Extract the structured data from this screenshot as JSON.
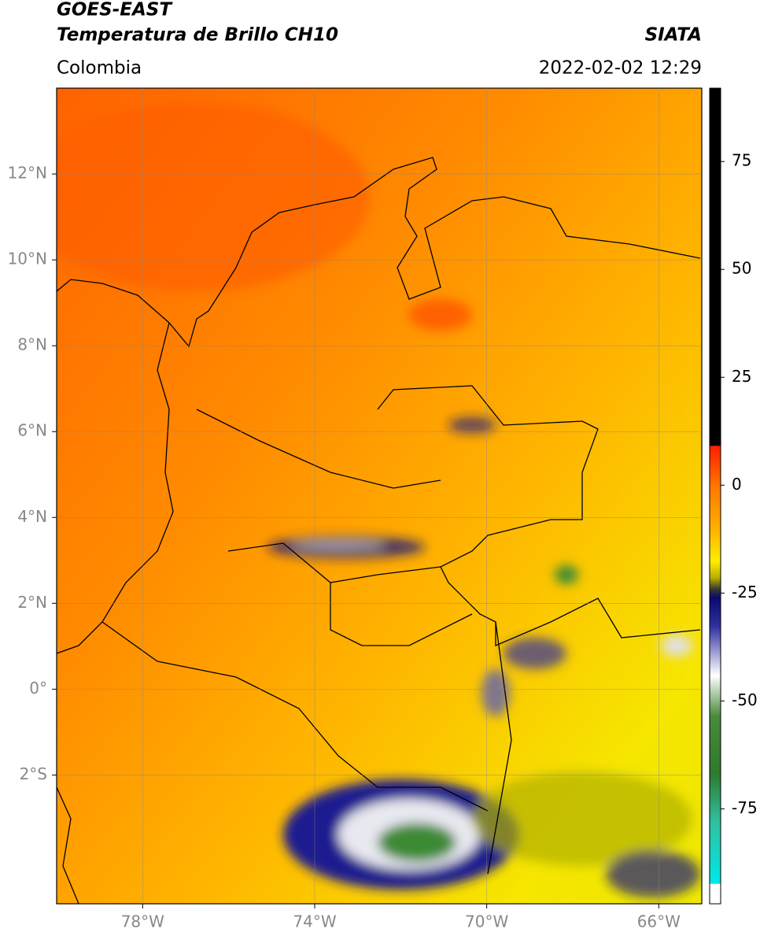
{
  "header": {
    "title": "GOES-EAST",
    "subtitle": "Temperatura de Brillo CH10",
    "region": "Colombia",
    "source": "SIATA",
    "datetime": "2022-02-02 12:29"
  },
  "map": {
    "xlim": [
      -80,
      -65
    ],
    "ylim": [
      -5,
      14
    ],
    "xticks": [
      {
        "value": -78,
        "label": "78°W"
      },
      {
        "value": -74,
        "label": "74°W"
      },
      {
        "value": -70,
        "label": "70°W"
      },
      {
        "value": -66,
        "label": "66°W"
      }
    ],
    "yticks": [
      {
        "value": 12,
        "label": "12°N"
      },
      {
        "value": 10,
        "label": "10°N"
      },
      {
        "value": 8,
        "label": "8°N"
      },
      {
        "value": 6,
        "label": "6°N"
      },
      {
        "value": 4,
        "label": "4°N"
      },
      {
        "value": 2,
        "label": "2°N"
      },
      {
        "value": 0,
        "label": "0°"
      },
      {
        "value": -2,
        "label": "2°S"
      }
    ],
    "grid": true
  },
  "colorbar": {
    "clim": [
      -97,
      92
    ],
    "ticks": [
      75,
      50,
      25,
      0,
      -25,
      -50,
      -75
    ]
  }
}
